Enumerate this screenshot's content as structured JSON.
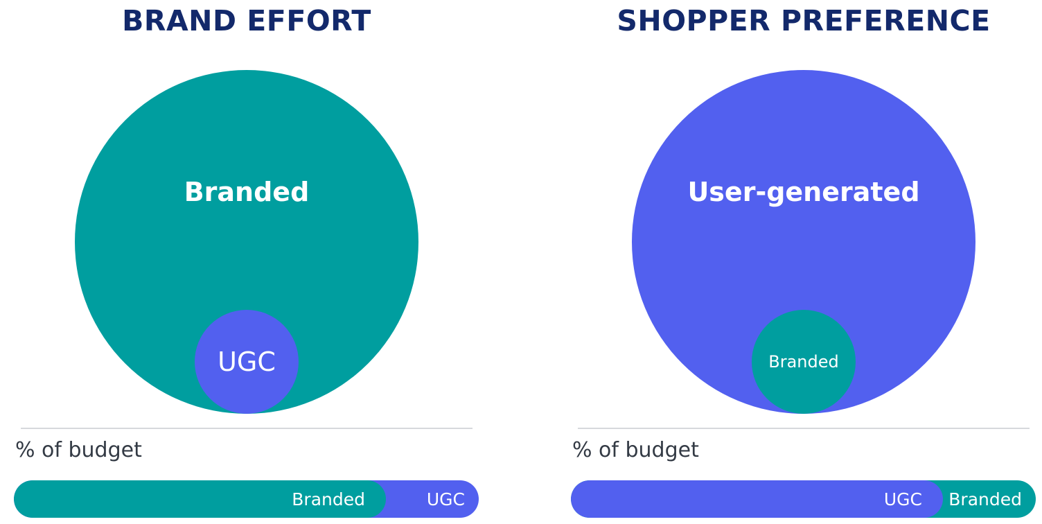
{
  "colors": {
    "teal": "#009e9f",
    "blue": "#5260ef",
    "title": "#13296b",
    "text": "#333a44",
    "divider": "#d6d8dc"
  },
  "panels": [
    {
      "title": "BRAND EFFORT",
      "big_circle": {
        "label": "Branded",
        "color": "#009e9f"
      },
      "small_circle": {
        "label": "UGC",
        "color": "#5260ef"
      },
      "budget_label": "% of budget",
      "bar": {
        "major": {
          "label": "Branded",
          "color": "#009e9f",
          "share": 0.8
        },
        "minor": {
          "label": "UGC",
          "color": "#5260ef",
          "share": 0.2
        }
      }
    },
    {
      "title": "SHOPPER PREFERENCE",
      "big_circle": {
        "label": "User-generated",
        "color": "#5260ef"
      },
      "small_circle": {
        "label": "Branded",
        "color": "#009e9f"
      },
      "budget_label": "% of budget",
      "bar": {
        "major": {
          "label": "UGC",
          "color": "#5260ef",
          "share": 0.8
        },
        "minor": {
          "label": "Branded",
          "color": "#009e9f",
          "share": 0.2
        }
      }
    }
  ]
}
